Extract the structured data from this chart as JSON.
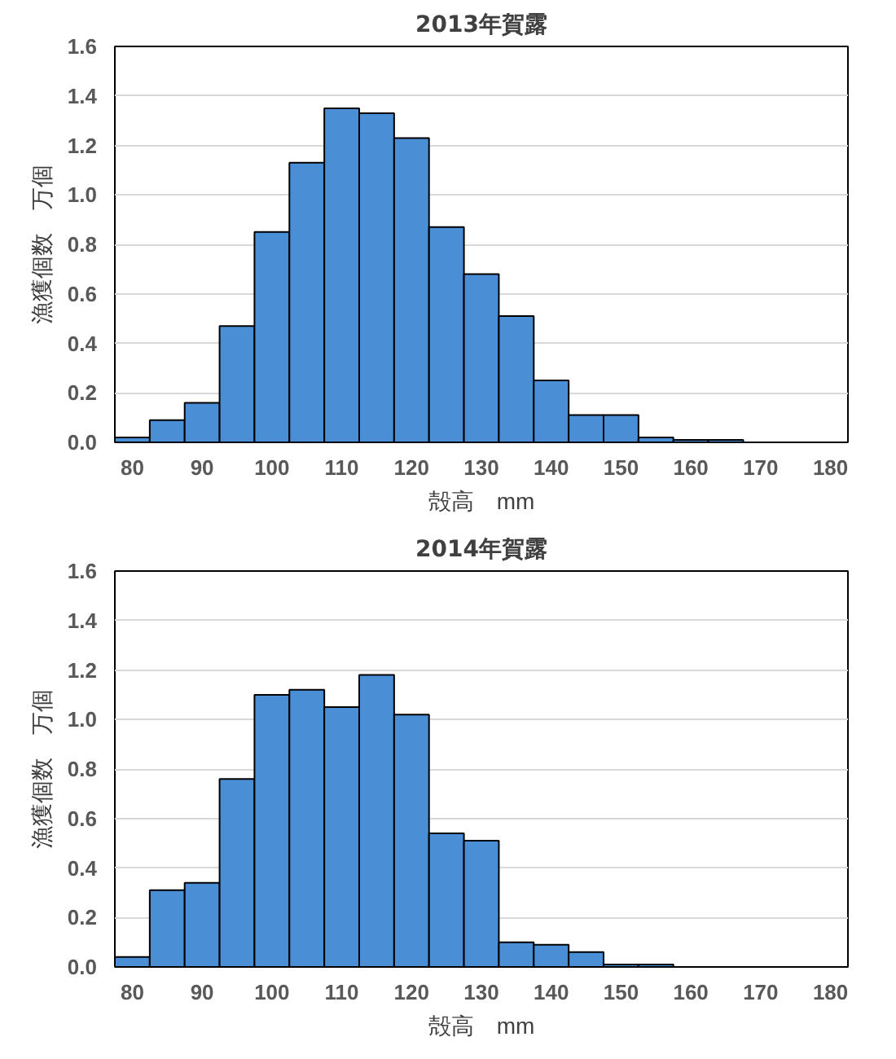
{
  "chart_data": [
    {
      "type": "histogram",
      "title": "2013年賀露",
      "xlabel": "殻高　mm",
      "ylabel": "漁獲個数　万個",
      "bins": [
        77.5,
        82.5,
        87.5,
        92.5,
        97.5,
        102.5,
        107.5,
        112.5,
        117.5,
        122.5,
        127.5,
        132.5,
        137.5,
        142.5,
        147.5,
        152.5,
        157.5,
        162.5,
        167.5,
        172.5,
        177.5,
        182.5
      ],
      "values": [
        0.02,
        0.09,
        0.16,
        0.47,
        0.85,
        1.13,
        1.35,
        1.33,
        1.23,
        0.87,
        0.68,
        0.51,
        0.25,
        0.11,
        0.11,
        0.02,
        0.01,
        0.01,
        null,
        null,
        null
      ],
      "color": "#4a8fd6",
      "xlim": [
        77.5,
        182.5
      ],
      "ylim": [
        0,
        1.6
      ],
      "xticks": [
        80,
        90,
        100,
        110,
        120,
        130,
        140,
        150,
        160,
        170,
        180
      ],
      "yticks": [
        {
          "value": 0,
          "label": "0.0"
        },
        {
          "value": 0.2,
          "label": "0.2"
        },
        {
          "value": 0.4,
          "label": "0.4"
        },
        {
          "value": 0.6,
          "label": "0.6"
        },
        {
          "value": 0.8,
          "label": "0.8"
        },
        {
          "value": 1.0,
          "label": "1.0"
        },
        {
          "value": 1.2,
          "label": "1.2"
        },
        {
          "value": 1.4,
          "label": "1.4"
        },
        {
          "value": 1.6,
          "label": "1.6"
        }
      ],
      "grid": "y"
    },
    {
      "type": "histogram",
      "title": "2014年賀露",
      "xlabel": "殻高　mm",
      "ylabel": "漁獲個数　万個",
      "bins": [
        77.5,
        82.5,
        87.5,
        92.5,
        97.5,
        102.5,
        107.5,
        112.5,
        117.5,
        122.5,
        127.5,
        132.5,
        137.5,
        142.5,
        147.5,
        152.5,
        157.5,
        162.5,
        167.5,
        172.5,
        177.5,
        182.5
      ],
      "values": [
        0.04,
        0.31,
        0.34,
        0.76,
        1.1,
        1.12,
        1.05,
        1.18,
        1.02,
        0.54,
        0.51,
        0.1,
        0.09,
        0.06,
        0.01,
        0.01,
        null,
        null,
        null,
        null,
        null
      ],
      "color": "#4a8fd6",
      "xlim": [
        77.5,
        182.5
      ],
      "ylim": [
        0,
        1.6
      ],
      "xticks": [
        80,
        90,
        100,
        110,
        120,
        130,
        140,
        150,
        160,
        170,
        180
      ],
      "yticks": [
        {
          "value": 0,
          "label": "0.0"
        },
        {
          "value": 0.2,
          "label": "0.2"
        },
        {
          "value": 0.4,
          "label": "0.4"
        },
        {
          "value": 0.6,
          "label": "0.6"
        },
        {
          "value": 0.8,
          "label": "0.8"
        },
        {
          "value": 1.0,
          "label": "1.0"
        },
        {
          "value": 1.2,
          "label": "1.2"
        },
        {
          "value": 1.4,
          "label": "1.4"
        },
        {
          "value": 1.6,
          "label": "1.6"
        }
      ],
      "grid": "y"
    }
  ]
}
